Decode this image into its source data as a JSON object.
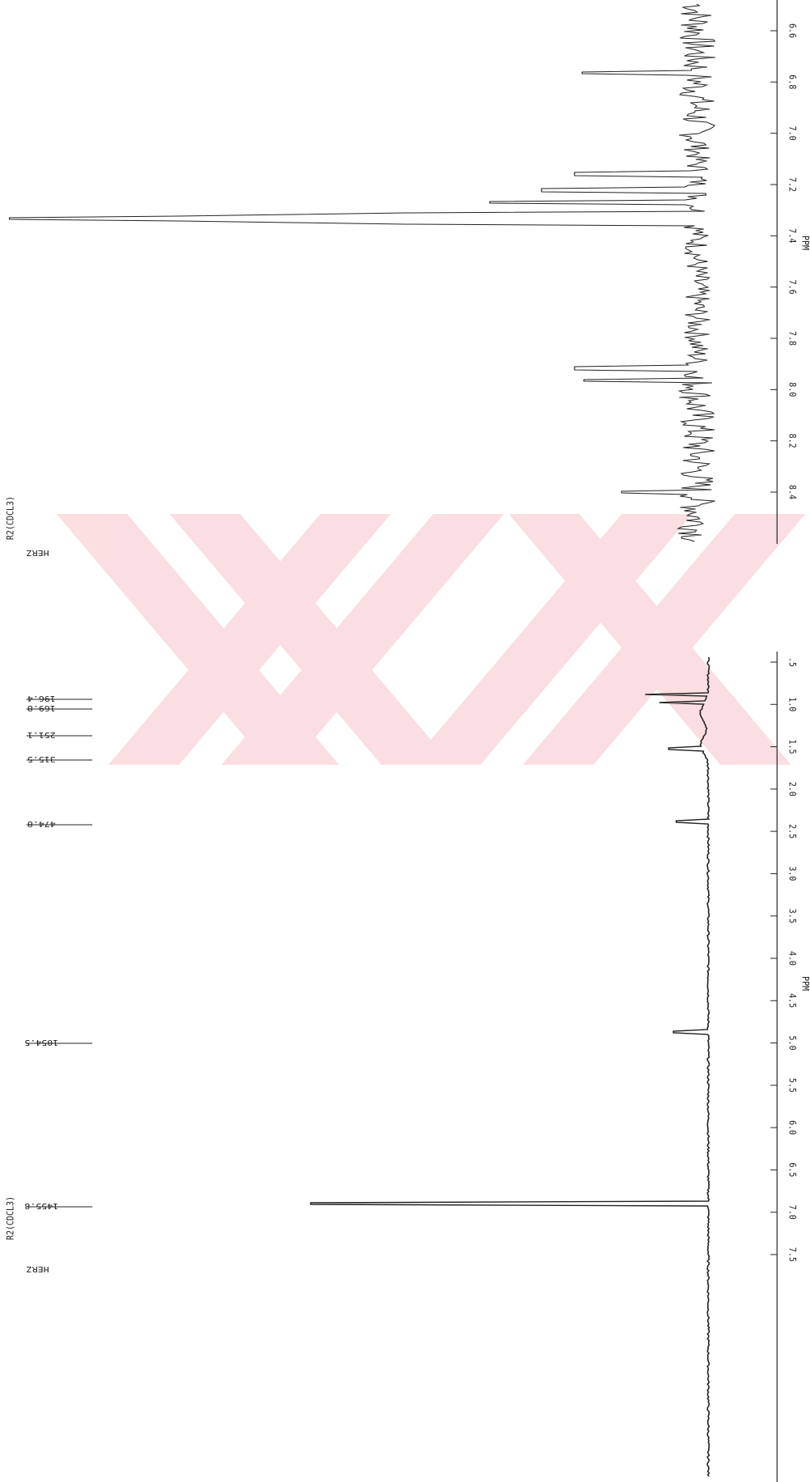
{
  "top_spectrum": {
    "solvent": "R2(CDCL3)",
    "unit_label": "HERZ",
    "axis_label": "PPM",
    "ticks": [
      "6.6",
      "6.8",
      "7.0",
      "7.2",
      "7.4",
      "7.6",
      "7.8",
      "8.0",
      "8.2",
      "8.4"
    ]
  },
  "bottom_spectrum": {
    "solvent": "R2(CDCL3)",
    "unit_label": "HERZ",
    "axis_label": "PPM",
    "ticks": [
      ".5",
      "1.0",
      "1.5",
      "2.0",
      "2.5",
      "3.0",
      "3.5",
      "4.0",
      "4.5",
      "5.0",
      "5.5",
      "6.0",
      "6.5",
      "7.0",
      "7.5"
    ],
    "peak_labels": [
      "196.4",
      "169.8",
      "251.1",
      "315.5",
      "474.8",
      "1054.5",
      "1455.8"
    ]
  }
}
